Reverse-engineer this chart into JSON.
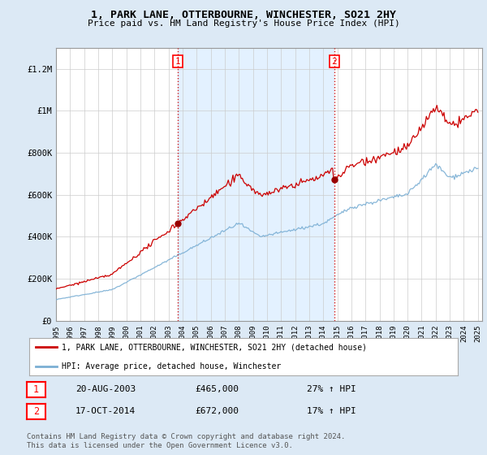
{
  "title": "1, PARK LANE, OTTERBOURNE, WINCHESTER, SO21 2HY",
  "subtitle": "Price paid vs. HM Land Registry's House Price Index (HPI)",
  "ylim": [
    0,
    1300000
  ],
  "yticks": [
    0,
    200000,
    400000,
    600000,
    800000,
    1000000,
    1200000
  ],
  "ytick_labels": [
    "£0",
    "£200K",
    "£400K",
    "£600K",
    "£800K",
    "£1M",
    "£1.2M"
  ],
  "x_start_year": 1995,
  "x_end_year": 2025,
  "sale1_year": 2003.64,
  "sale1_label": "1",
  "sale1_price": 465000,
  "sale1_date": "20-AUG-2003",
  "sale1_hpi": "27% ↑ HPI",
  "sale2_year": 2014.79,
  "sale2_label": "2",
  "sale2_price": 672000,
  "sale2_date": "17-OCT-2014",
  "sale2_hpi": "17% ↑ HPI",
  "line_color_property": "#cc0000",
  "line_color_hpi": "#7bafd4",
  "marker_color": "#990000",
  "shade_color": "#ddeeff",
  "legend_property": "1, PARK LANE, OTTERBOURNE, WINCHESTER, SO21 2HY (detached house)",
  "legend_hpi": "HPI: Average price, detached house, Winchester",
  "footer": "Contains HM Land Registry data © Crown copyright and database right 2024.\nThis data is licensed under the Open Government Licence v3.0.",
  "background_color": "#dce9f5",
  "plot_bg_color": "#ffffff"
}
